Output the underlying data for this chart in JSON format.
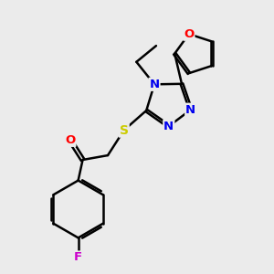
{
  "background_color": "#ebebeb",
  "bond_color": "#000000",
  "atom_colors": {
    "O": "#ff0000",
    "N": "#0000ee",
    "S": "#cccc00",
    "F": "#cc00cc",
    "C": "#000000"
  },
  "figsize": [
    3.0,
    3.0
  ],
  "dpi": 100
}
